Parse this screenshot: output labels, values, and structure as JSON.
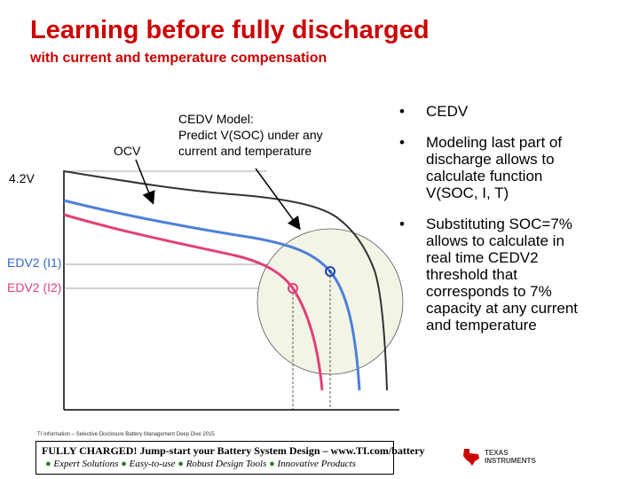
{
  "title": "Learning before fully discharged",
  "subtitle": "with current and temperature compensation",
  "diagram": {
    "ocv_label": "OCV",
    "model_label": [
      "CEDV Model:",
      "Predict V(SOC) under any",
      "current and temperature"
    ],
    "voltage_label": "4.2V",
    "edv1_label": "EDV2 (I1)",
    "edv2_label": "EDV2 (I2)"
  },
  "bullets": [
    {
      "symbol": "•",
      "lines": [
        "CEDV"
      ]
    },
    {
      "symbol": "•",
      "lines": [
        "Modeling last part of",
        "discharge allows to",
        "calculate function",
        "V(SOC, I, T)"
      ]
    },
    {
      "symbol": "•",
      "lines": [
        "Substituting SOC=7%",
        "allows to calculate in",
        "real time CEDV2",
        "threshold that",
        "corresponds to 7%",
        "capacity at any current",
        "and temperature"
      ]
    }
  ],
  "footer": {
    "small_text": "TI Information – Selective Disclosure  Battery Management Deep Dive 2015",
    "line1": "FULLY CHARGED! Jump-start your Battery System Design – www.TI.com/battery",
    "line2_items": [
      "Expert Solutions",
      "Easy-to-use",
      "Robust Design Tools",
      "Innovative Products"
    ]
  },
  "logo": {
    "line1": "TEXAS",
    "line2": "INSTRUMENTS"
  },
  "colors": {
    "title": "#cc0000",
    "curve_blue": "#4f7fd9",
    "curve_pink": "#e0407a",
    "dark_curve": "#333333",
    "footer_bullet": "#2a7a2a"
  }
}
